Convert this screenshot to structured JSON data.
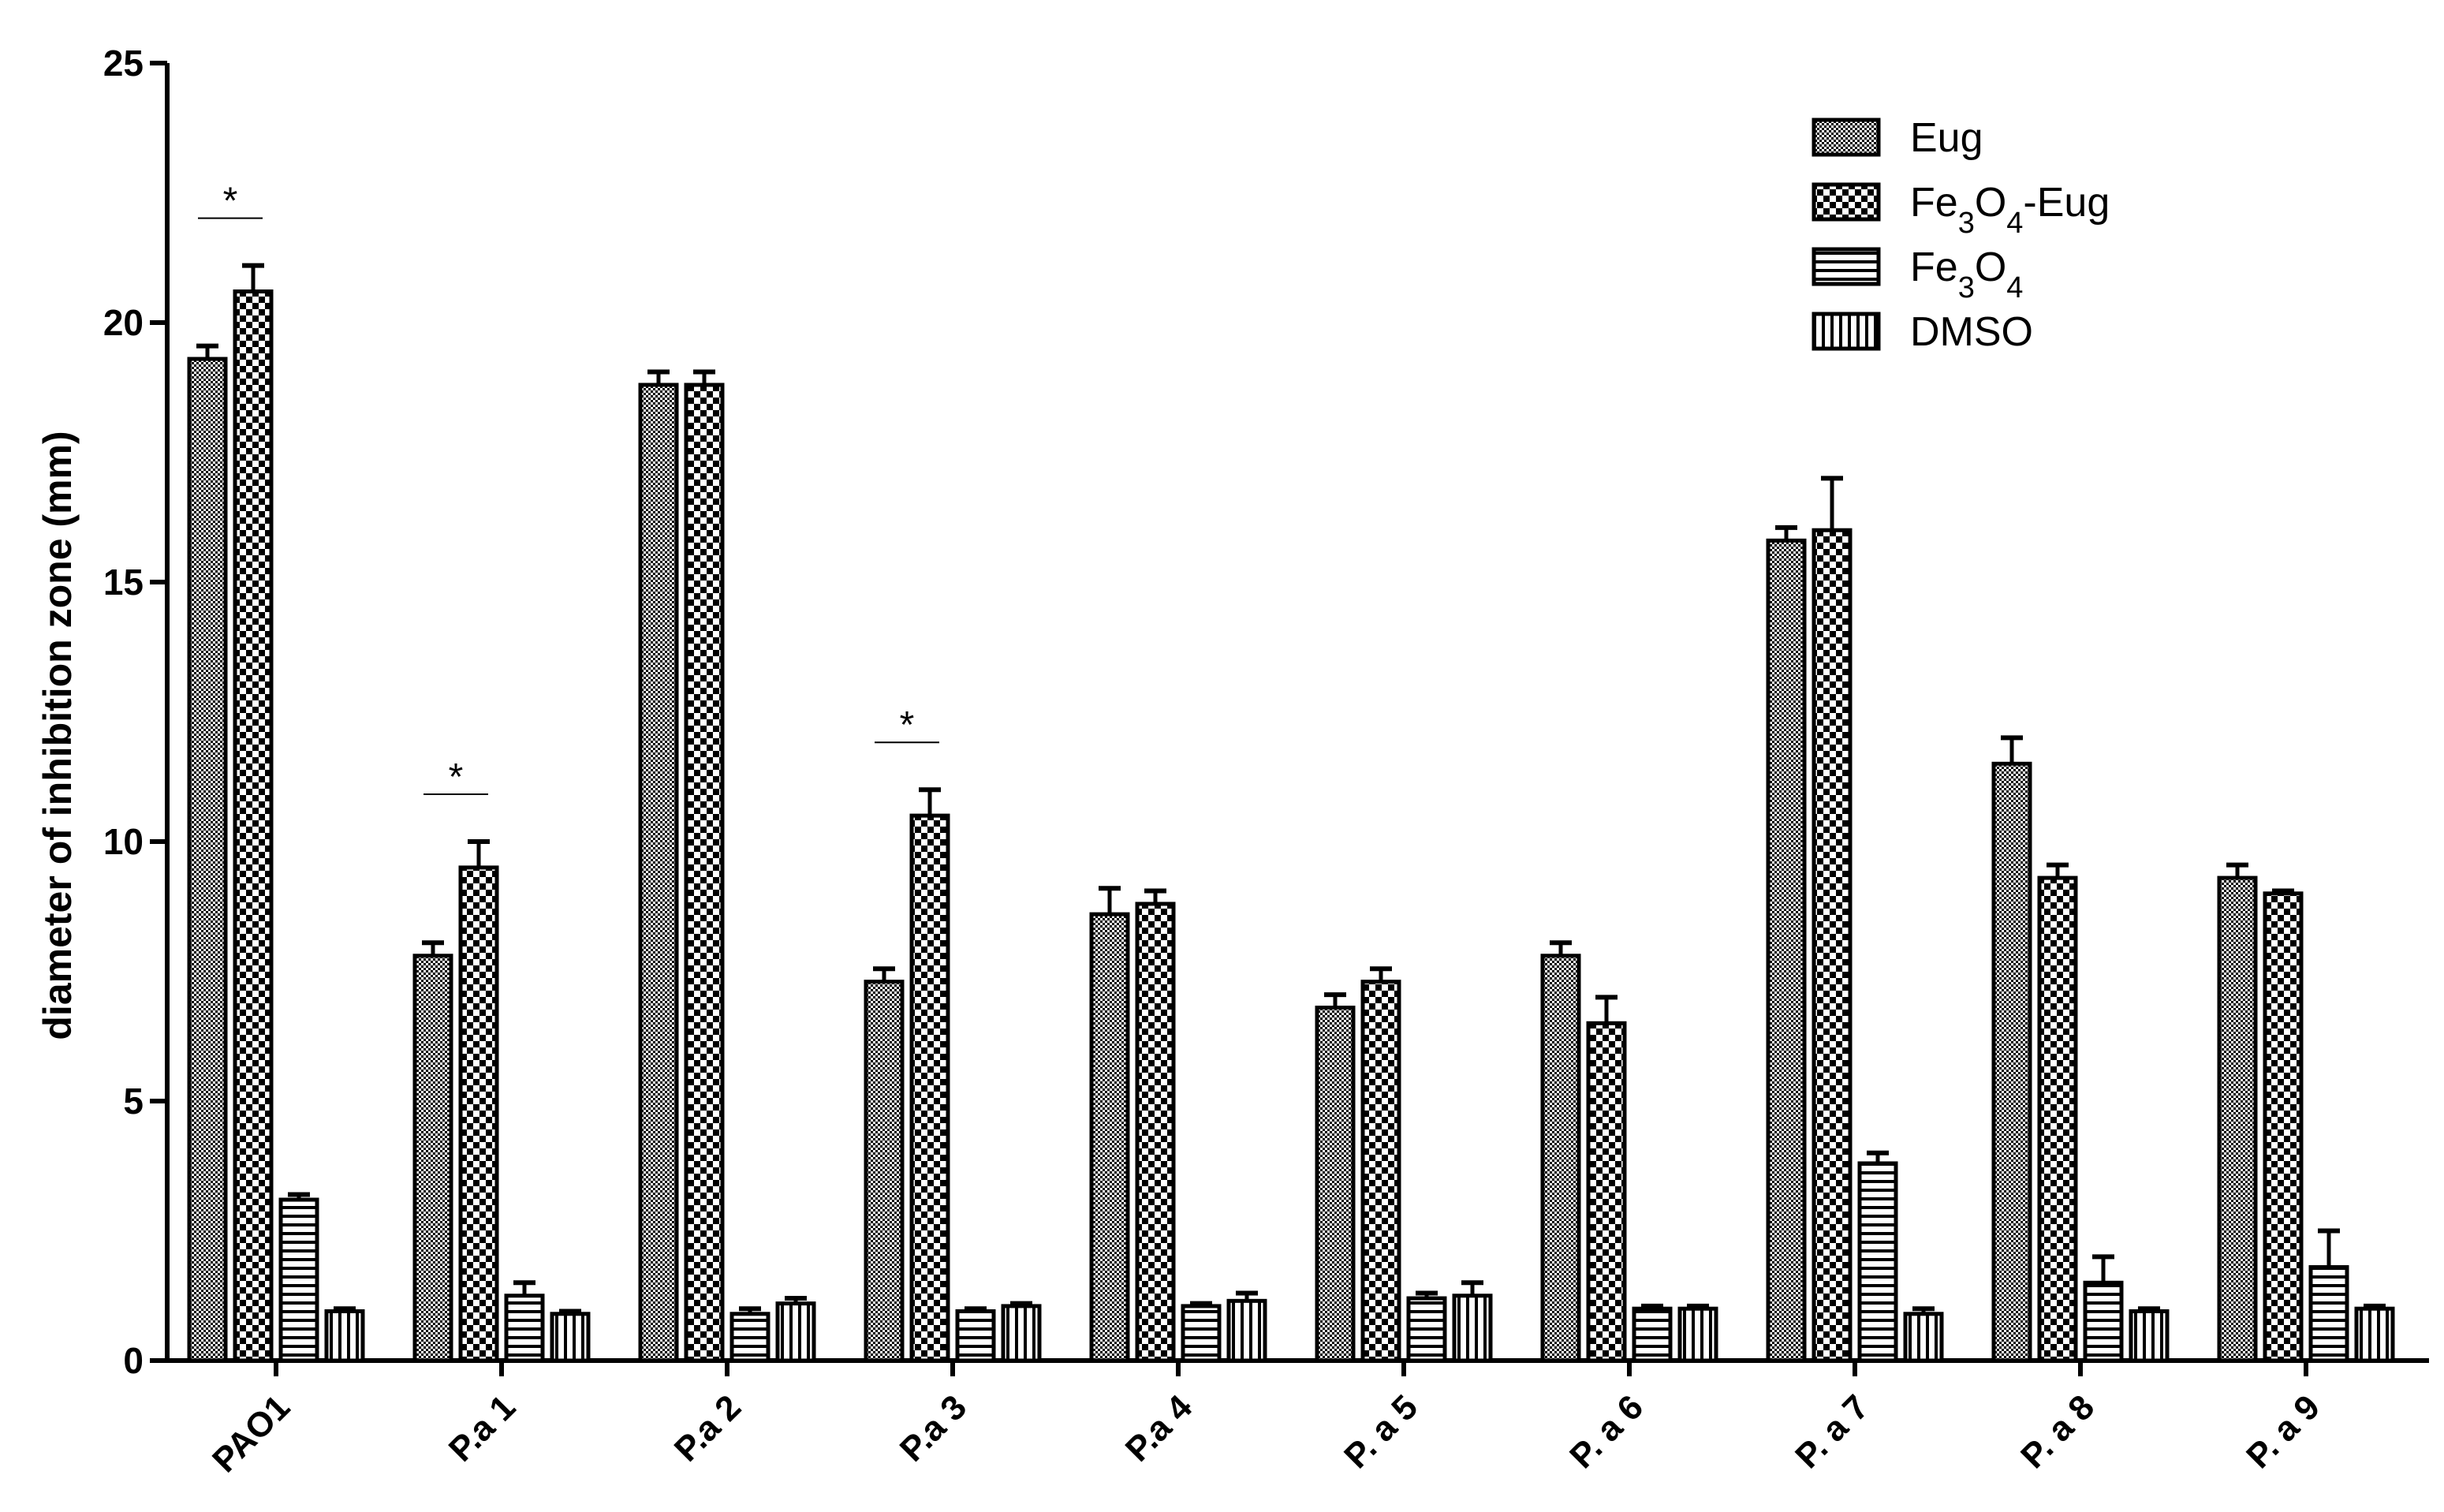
{
  "chart_data": {
    "type": "bar",
    "title": "",
    "xlabel": "",
    "ylabel": "diameter of inhibition zone (mm)",
    "ylim": [
      0,
      25
    ],
    "yticks": [
      "0",
      "5",
      "10",
      "15",
      "20",
      "25"
    ],
    "categories": [
      "PAO1",
      "P.a 1",
      "P.a 2",
      "P.a 3",
      "P.a 4",
      "P. a 5",
      "P. a 6",
      "P. a 7",
      "P. a 8",
      "P. a 9"
    ],
    "series": [
      {
        "name": "Eug",
        "subscript_name": [
          [
            "Eug",
            false
          ]
        ],
        "pattern": "fine-check",
        "values": [
          19.3,
          7.8,
          18.8,
          7.3,
          8.6,
          6.8,
          7.8,
          15.8,
          11.5,
          9.3
        ],
        "errors": [
          0.25,
          0.25,
          0.25,
          0.25,
          0.5,
          0.25,
          0.25,
          0.25,
          0.5,
          0.25
        ]
      },
      {
        "name": "Fe3O4-Eug",
        "subscript_name": [
          [
            "Fe",
            false
          ],
          [
            "3",
            true
          ],
          [
            "O",
            false
          ],
          [
            "4",
            true
          ],
          [
            "-Eug",
            false
          ]
        ],
        "pattern": "coarse-check",
        "values": [
          20.6,
          9.5,
          18.8,
          10.5,
          8.8,
          7.3,
          6.5,
          16.0,
          9.3,
          9.0
        ],
        "errors": [
          0.5,
          0.5,
          0.25,
          0.5,
          0.25,
          0.25,
          0.5,
          1.0,
          0.25,
          0.05
        ]
      },
      {
        "name": "Fe3O4",
        "subscript_name": [
          [
            "Fe",
            false
          ],
          [
            "3",
            true
          ],
          [
            "O",
            false
          ],
          [
            "4",
            true
          ]
        ],
        "pattern": "horizontal",
        "values": [
          3.1,
          1.25,
          0.9,
          0.95,
          1.05,
          1.2,
          1.0,
          3.8,
          1.5,
          1.8
        ],
        "errors": [
          0.1,
          0.25,
          0.1,
          0.05,
          0.05,
          0.1,
          0.05,
          0.2,
          0.5,
          0.7
        ]
      },
      {
        "name": "DMSO",
        "subscript_name": [
          [
            "DMSO",
            false
          ]
        ],
        "pattern": "vertical",
        "values": [
          0.95,
          0.9,
          1.1,
          1.05,
          1.15,
          1.25,
          1.0,
          0.9,
          0.95,
          1.0
        ],
        "errors": [
          0.05,
          0.05,
          0.1,
          0.05,
          0.15,
          0.25,
          0.05,
          0.1,
          0.05,
          0.05
        ]
      }
    ],
    "significance": [
      {
        "category": "PAO1",
        "label": "*"
      },
      {
        "category": "P.a 1",
        "label": "*"
      },
      {
        "category": "P.a 3",
        "label": "*"
      }
    ],
    "legend_position": "top-right",
    "grid": false
  }
}
